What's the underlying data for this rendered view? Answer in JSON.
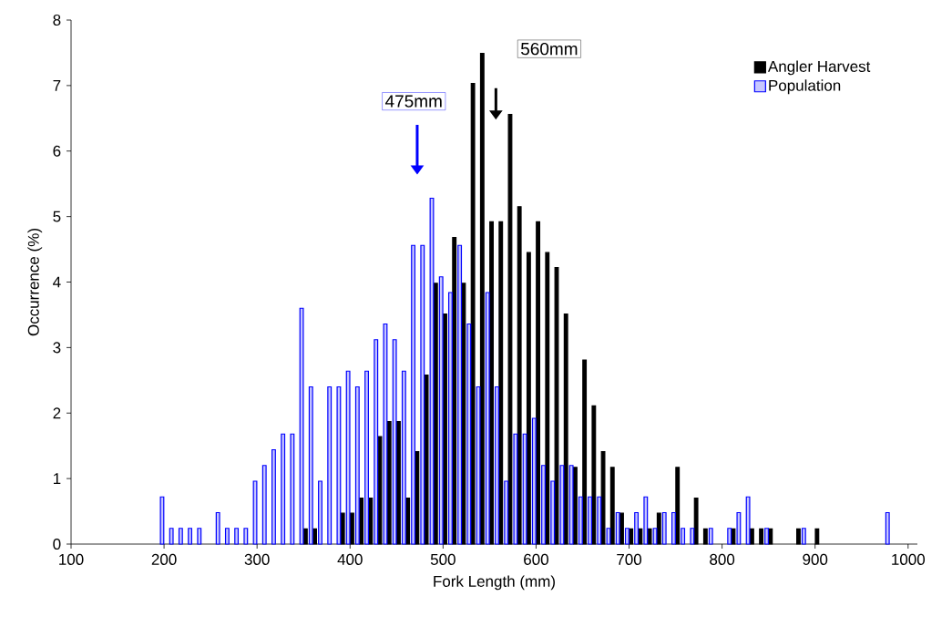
{
  "chart_data": {
    "type": "bar",
    "xlabel": "Fork Length (mm)",
    "ylabel": "Occurrence (%)",
    "xlim": [
      100,
      1010
    ],
    "xticks": [
      100,
      200,
      300,
      400,
      500,
      600,
      700,
      800,
      900,
      1000
    ],
    "ylim": [
      0,
      8
    ],
    "yticks": [
      0,
      1,
      2,
      3,
      4,
      5,
      6,
      7,
      8
    ],
    "grid": false,
    "legend": "top right",
    "series": [
      {
        "name": "Angler Harvest",
        "color": "#000000",
        "x": [
          350,
          360,
          370,
          380,
          390,
          400,
          410,
          420,
          430,
          440,
          450,
          460,
          470,
          480,
          490,
          500,
          510,
          520,
          530,
          540,
          550,
          560,
          570,
          580,
          590,
          600,
          610,
          620,
          630,
          640,
          650,
          660,
          670,
          680,
          690,
          700,
          710,
          720,
          730,
          740,
          750,
          760,
          770,
          780,
          790,
          800,
          810,
          820,
          830,
          840,
          850,
          860,
          870,
          880,
          890,
          900
        ],
        "values": [
          0.23,
          0.23,
          0,
          0,
          0.47,
          0.47,
          0.7,
          0.7,
          1.64,
          1.87,
          1.87,
          0.7,
          1.41,
          2.58,
          3.98,
          3.51,
          4.68,
          3.98,
          7.03,
          7.49,
          4.92,
          4.92,
          6.56,
          5.15,
          4.45,
          4.92,
          4.45,
          4.22,
          3.51,
          1.17,
          2.81,
          2.11,
          1.41,
          1.17,
          0.47,
          0.23,
          0.23,
          0.23,
          0.47,
          0,
          1.17,
          0,
          0.7,
          0.23,
          0,
          0,
          0.23,
          0,
          0.23,
          0.23,
          0.23,
          0,
          0,
          0.23,
          0,
          0.23
        ]
      },
      {
        "name": "Population",
        "color": "#0000ff",
        "x": [
          200,
          210,
          220,
          230,
          240,
          250,
          260,
          270,
          280,
          290,
          300,
          310,
          320,
          330,
          340,
          350,
          360,
          370,
          380,
          390,
          400,
          410,
          420,
          430,
          440,
          450,
          460,
          470,
          480,
          490,
          500,
          510,
          520,
          530,
          540,
          550,
          560,
          570,
          580,
          590,
          600,
          610,
          620,
          630,
          640,
          650,
          660,
          670,
          680,
          690,
          700,
          710,
          720,
          730,
          740,
          750,
          760,
          770,
          780,
          790,
          800,
          810,
          820,
          830,
          840,
          850,
          860,
          870,
          880,
          890,
          900,
          910,
          920,
          930,
          940,
          950,
          960,
          970,
          980
        ],
        "values": [
          0.72,
          0.24,
          0.24,
          0.24,
          0.24,
          0,
          0.48,
          0.24,
          0.24,
          0.24,
          0.96,
          1.2,
          1.44,
          1.68,
          1.68,
          3.6,
          2.4,
          0.96,
          2.4,
          2.4,
          2.64,
          2.4,
          2.64,
          3.12,
          3.36,
          3.12,
          2.64,
          4.56,
          4.56,
          5.28,
          4.08,
          3.84,
          4.56,
          3.36,
          2.4,
          3.84,
          2.4,
          0.96,
          1.68,
          1.68,
          1.92,
          1.2,
          0.96,
          1.2,
          1.2,
          0.72,
          0.72,
          0.72,
          0.24,
          0.48,
          0.24,
          0.48,
          0.72,
          0.24,
          0.48,
          0.48,
          0.24,
          0.24,
          0,
          0.24,
          0,
          0.24,
          0.48,
          0.72,
          0,
          0.24,
          0,
          0,
          0,
          0.24,
          0,
          0,
          0,
          0,
          0,
          0,
          0,
          0,
          0.48
        ]
      }
    ],
    "annotations": [
      "475mm",
      "560mm"
    ]
  }
}
